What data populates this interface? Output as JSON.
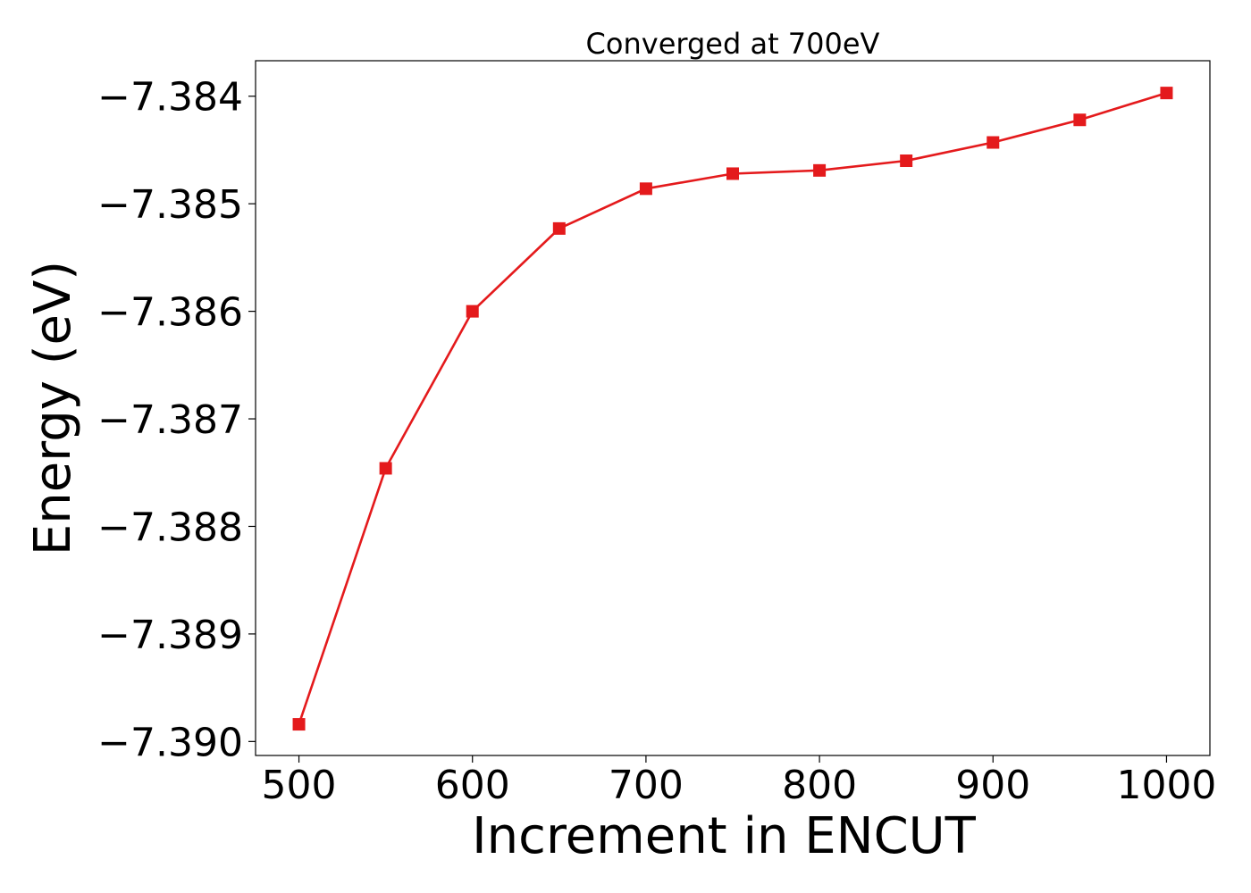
{
  "chart_data": {
    "type": "line",
    "title": "Converged at 700eV",
    "xlabel": "Increment in ENCUT",
    "ylabel": "Energy (eV)",
    "xlim": [
      475,
      1025
    ],
    "ylim": [
      -7.39013,
      -7.38367
    ],
    "x_ticks": [
      500,
      600,
      700,
      800,
      900,
      1000
    ],
    "x_tick_labels": [
      "500",
      "600",
      "700",
      "800",
      "900",
      "1000"
    ],
    "y_ticks": [
      -7.384,
      -7.385,
      -7.386,
      -7.387,
      -7.388,
      -7.389,
      -7.39
    ],
    "y_tick_labels": [
      "−7.384",
      "−7.385",
      "−7.386",
      "−7.387",
      "−7.388",
      "−7.389",
      "−7.390"
    ],
    "grid": false,
    "marker": "square",
    "series": [
      {
        "color": "#e41a1c",
        "x": [
          500,
          550,
          600,
          650,
          700,
          750,
          800,
          850,
          900,
          950,
          1000
        ],
        "y": [
          -7.38984,
          -7.38746,
          -7.386,
          -7.38523,
          -7.38486,
          -7.38472,
          -7.38469,
          -7.3846,
          -7.38443,
          -7.38422,
          -7.38397
        ]
      }
    ]
  }
}
